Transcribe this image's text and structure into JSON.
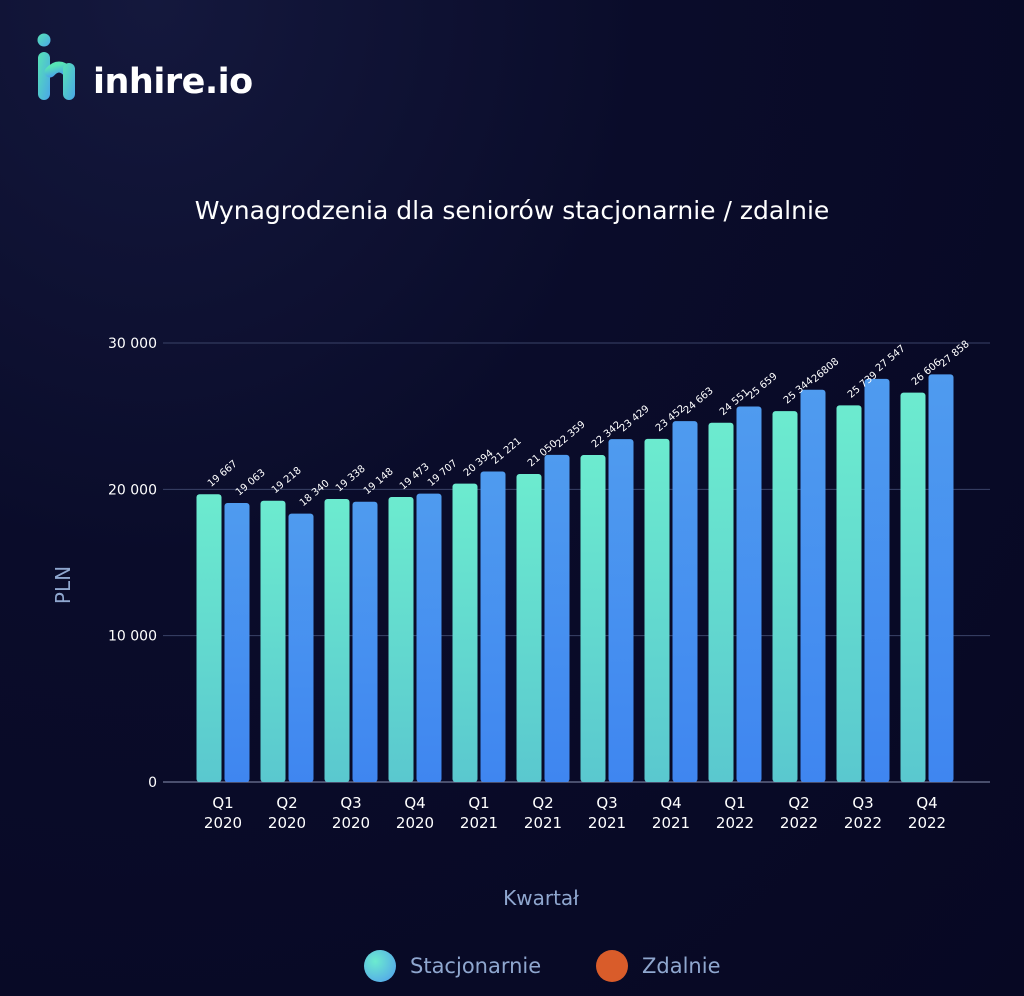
{
  "brand": {
    "name": "inhire.io"
  },
  "colors": {
    "bar_a_top": "#6cebcf",
    "bar_a_bottom": "#5ac8cf",
    "bar_b_top": "#4f9bef",
    "bar_b_bottom": "#3f86f0",
    "legend_a": "#6cebcf",
    "legend_b": "#d95c2a",
    "axis_text": "#8fa7cf",
    "grid": "#3a4368"
  },
  "chart_data": {
    "type": "bar",
    "title": "Wynagrodzenia dla seniorów stacjonarnie / zdalnie",
    "xlabel": "Kwartał",
    "ylabel": "PLN",
    "ylim": [
      0,
      30000
    ],
    "yticks": [
      0,
      10000,
      20000,
      30000
    ],
    "ytick_labels": [
      "0",
      "10 000",
      "20 000",
      "30 000"
    ],
    "grid": true,
    "legend_position": "bottom",
    "categories": [
      "Q1 2020",
      "Q2 2020",
      "Q3 2020",
      "Q4 2020",
      "Q1 2021",
      "Q2 2021",
      "Q3 2021",
      "Q4 2021",
      "Q1 2022",
      "Q2 2022",
      "Q3 2022",
      "Q4 2022"
    ],
    "category_lines": [
      [
        "Q1",
        "2020"
      ],
      [
        "Q2",
        "2020"
      ],
      [
        "Q3",
        "2020"
      ],
      [
        "Q4",
        "2020"
      ],
      [
        "Q1",
        "2021"
      ],
      [
        "Q2",
        "2021"
      ],
      [
        "Q3",
        "2021"
      ],
      [
        "Q4",
        "2021"
      ],
      [
        "Q1",
        "2022"
      ],
      [
        "Q2",
        "2022"
      ],
      [
        "Q3",
        "2022"
      ],
      [
        "Q4",
        "2022"
      ]
    ],
    "series": [
      {
        "name": "Stacjonarnie",
        "values": [
          19667,
          19218,
          19338,
          19473,
          20394,
          21050,
          22342,
          23452,
          24551,
          25344,
          25739,
          26606
        ],
        "labels": [
          "19 667",
          "19 218",
          "19 338",
          "19 473",
          "20 394",
          "21 050",
          "22 342",
          "23 452",
          "24 551",
          "25 344",
          "25 739",
          "26 606"
        ]
      },
      {
        "name": "Zdalnie",
        "values": [
          19063,
          18340,
          19148,
          19707,
          21221,
          22359,
          23429,
          24663,
          25659,
          26808,
          27547,
          27858
        ],
        "labels": [
          "19 063",
          "18 340",
          "19 148",
          "19 707",
          "21 221",
          "22 359",
          "23 429",
          "24 663",
          "25 659",
          "26808",
          "27 547",
          "27 858"
        ]
      }
    ]
  }
}
